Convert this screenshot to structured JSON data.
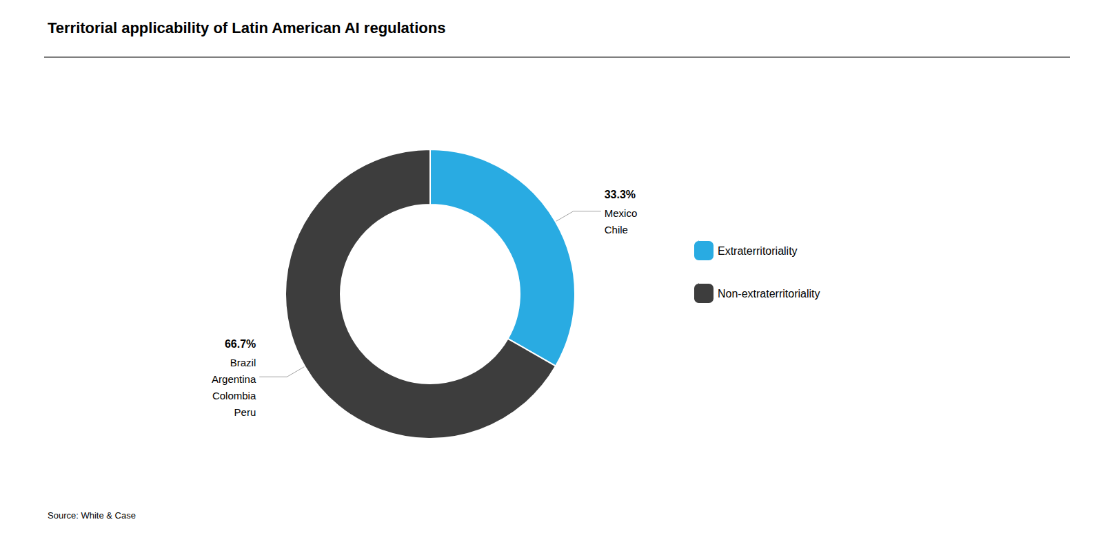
{
  "chart_data": {
    "type": "pie",
    "title": "Territorial applicability of Latin American AI regulations",
    "categories": [
      "Extraterritoriality",
      "Non-extraterritoriality"
    ],
    "values": [
      33.3,
      66.7
    ],
    "value_labels": [
      "33.3%",
      "66.7%"
    ],
    "colors": [
      "#29ABE2",
      "#3D3D3D"
    ],
    "annotations": [
      "Mexico\nChile",
      "Brazil\nArgentina\nColombia\nPeru"
    ],
    "source": "Source: White & Case",
    "data_labels": true,
    "legend": "right"
  }
}
